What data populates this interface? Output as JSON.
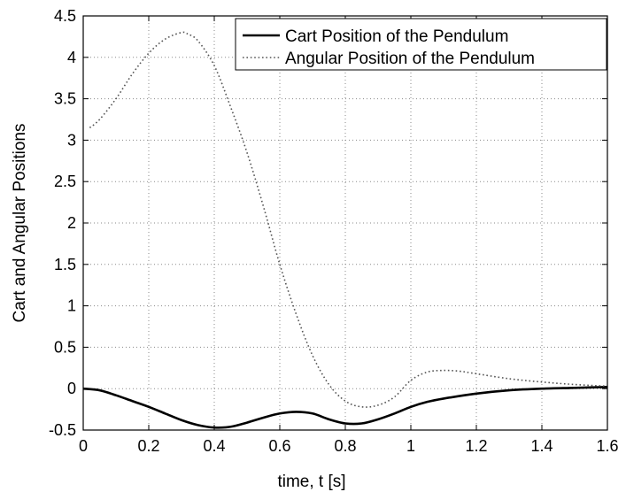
{
  "chart_data": {
    "type": "line",
    "title": "",
    "xlabel": "time, t [s]",
    "ylabel": "Cart and Angular Positions",
    "xlim": [
      0,
      1.6
    ],
    "ylim": [
      -0.5,
      4.5
    ],
    "x_ticks": [
      "0",
      "0.2",
      "0.4",
      "0.6",
      "0.8",
      "1",
      "1.2",
      "1.4",
      "1.6"
    ],
    "y_ticks": [
      "-0.5",
      "0",
      "0.5",
      "1",
      "1.5",
      "2",
      "2.5",
      "3",
      "3.5",
      "4",
      "4.5"
    ],
    "grid": true,
    "legend_position": "top-right",
    "series": [
      {
        "name": "Cart Position of the Pendulum",
        "style": "solid",
        "color": "#000000",
        "x": [
          0,
          0.05,
          0.1,
          0.15,
          0.2,
          0.25,
          0.3,
          0.35,
          0.4,
          0.45,
          0.5,
          0.55,
          0.6,
          0.65,
          0.7,
          0.75,
          0.8,
          0.85,
          0.9,
          0.95,
          1.0,
          1.05,
          1.1,
          1.2,
          1.3,
          1.4,
          1.5,
          1.6
        ],
        "y": [
          0,
          -0.02,
          -0.08,
          -0.15,
          -0.22,
          -0.3,
          -0.38,
          -0.44,
          -0.47,
          -0.46,
          -0.41,
          -0.35,
          -0.3,
          -0.28,
          -0.3,
          -0.37,
          -0.42,
          -0.42,
          -0.37,
          -0.3,
          -0.22,
          -0.16,
          -0.12,
          -0.06,
          -0.02,
          0,
          0.01,
          0.02
        ]
      },
      {
        "name": "Angular Position of the Pendulum",
        "style": "dotted",
        "color": "#555555",
        "x": [
          0.02,
          0.05,
          0.1,
          0.15,
          0.2,
          0.25,
          0.3,
          0.32,
          0.35,
          0.4,
          0.45,
          0.5,
          0.55,
          0.6,
          0.65,
          0.7,
          0.75,
          0.8,
          0.85,
          0.9,
          0.95,
          1.0,
          1.05,
          1.1,
          1.15,
          1.2,
          1.3,
          1.4,
          1.5,
          1.6
        ],
        "y": [
          3.15,
          3.25,
          3.5,
          3.8,
          4.05,
          4.22,
          4.3,
          4.28,
          4.2,
          3.9,
          3.4,
          2.85,
          2.2,
          1.5,
          0.9,
          0.4,
          0.05,
          -0.15,
          -0.22,
          -0.2,
          -0.1,
          0.1,
          0.2,
          0.22,
          0.21,
          0.18,
          0.12,
          0.08,
          0.05,
          0.03
        ]
      }
    ]
  }
}
